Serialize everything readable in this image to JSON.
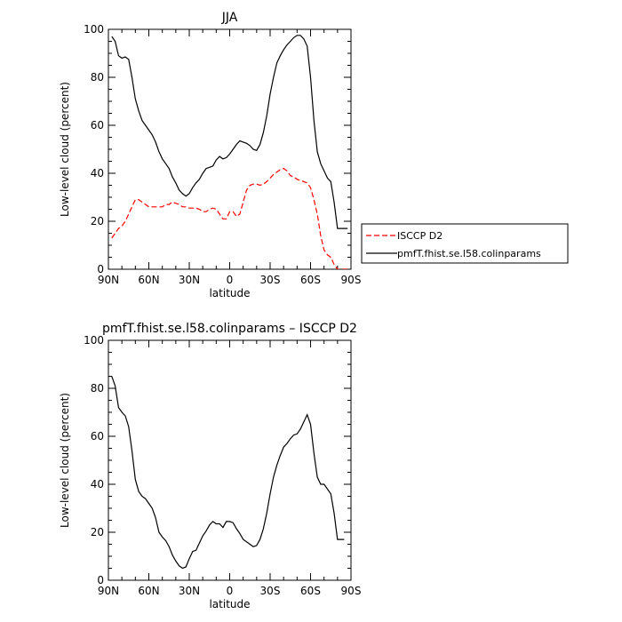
{
  "chart_data": [
    {
      "type": "line",
      "title": "JJA",
      "xlabel": "latitude",
      "ylabel": "Low-level cloud (percent)",
      "xlim": [
        90,
        -90
      ],
      "ylim": [
        0,
        100
      ],
      "x_ticks": [
        90,
        60,
        30,
        0,
        -30,
        -60,
        -90
      ],
      "x_tick_labels": [
        "90N",
        "60N",
        "30N",
        "0",
        "30S",
        "60S",
        "90S"
      ],
      "y_ticks": [
        0,
        20,
        40,
        60,
        80,
        100
      ],
      "y_tick_labels": [
        "0",
        "20",
        "40",
        "60",
        "80",
        "100"
      ],
      "legend_position": "right",
      "series": [
        {
          "name": "ISCCP D2",
          "color": "#ff0000",
          "dash": "dashed",
          "x": [
            87.5,
            85,
            82.5,
            80,
            77.5,
            75,
            72.5,
            70,
            67.5,
            65,
            62.5,
            60,
            57.5,
            55,
            52.5,
            50,
            47.5,
            45,
            42.5,
            40,
            37.5,
            35,
            32.5,
            30,
            27.5,
            25,
            22.5,
            20,
            17.5,
            15,
            12.5,
            10,
            7.5,
            5,
            2.5,
            0,
            -2.5,
            -5,
            -7.5,
            -10,
            -12.5,
            -15,
            -17.5,
            -20,
            -22.5,
            -25,
            -27.5,
            -30,
            -32.5,
            -35,
            -37.5,
            -40,
            -42.5,
            -45,
            -47.5,
            -50,
            -52.5,
            -55,
            -57.5,
            -60,
            -62.5,
            -65,
            -67.5,
            -70,
            -72.5,
            -75,
            -77.5,
            -80,
            -82.5,
            -85,
            -87.5
          ],
          "y": [
            13,
            15,
            17,
            18,
            20,
            23,
            26,
            29,
            29,
            28,
            27,
            26,
            26,
            26,
            26,
            26,
            27,
            27,
            28,
            27.5,
            27,
            26,
            26,
            25.5,
            25.5,
            25.5,
            25,
            24,
            24,
            25,
            25.5,
            25,
            23,
            21,
            21,
            24,
            24,
            22,
            23,
            28,
            33,
            35,
            35.5,
            35.5,
            35,
            35.5,
            36.5,
            38,
            39.5,
            40.5,
            41.5,
            42,
            41,
            39,
            38.5,
            37.5,
            37,
            36.5,
            36,
            34,
            29,
            23,
            14,
            8,
            6,
            5,
            2,
            0,
            0,
            0,
            0
          ]
        },
        {
          "name": "pmfT.fhist.se.l58.colinparams",
          "color": "#000000",
          "dash": "solid",
          "x": [
            87.5,
            85,
            82.5,
            80,
            77.5,
            75,
            72.5,
            70,
            67.5,
            65,
            62.5,
            60,
            57.5,
            55,
            52.5,
            50,
            47.5,
            45,
            42.5,
            40,
            37.5,
            35,
            32.5,
            30,
            27.5,
            25,
            22.5,
            20,
            17.5,
            15,
            12.5,
            10,
            7.5,
            5,
            2.5,
            0,
            -2.5,
            -5,
            -7.5,
            -10,
            -12.5,
            -15,
            -17.5,
            -20,
            -22.5,
            -25,
            -27.5,
            -30,
            -32.5,
            -35,
            -37.5,
            -40,
            -42.5,
            -45,
            -47.5,
            -50,
            -52.5,
            -55,
            -57.5,
            -60,
            -62.5,
            -65,
            -67.5,
            -70,
            -72.5,
            -75,
            -77.5,
            -80,
            -82.5,
            -85,
            -87.5
          ],
          "y": [
            97,
            95,
            89,
            88,
            88.5,
            87.5,
            80,
            71,
            66,
            62,
            60,
            58,
            56,
            53,
            49,
            46,
            44,
            42,
            38.5,
            36,
            33,
            31.5,
            30.5,
            31.5,
            34,
            36,
            37.5,
            40,
            42,
            42.5,
            43,
            45.5,
            47,
            46,
            46.5,
            48,
            50,
            52,
            53.5,
            53,
            52.5,
            51.5,
            50,
            49.5,
            52,
            57,
            64,
            73,
            80,
            86,
            89,
            91.5,
            93.5,
            95,
            96.5,
            97.5,
            97.5,
            96,
            93,
            80,
            62,
            49,
            44,
            41,
            38,
            36.5,
            28,
            17,
            17,
            17,
            17
          ]
        }
      ]
    },
    {
      "type": "line",
      "title": "pmfT.fhist.se.l58.colinparams – ISCCP D2",
      "xlabel": "latitude",
      "ylabel": "Low-level cloud (percent)",
      "xlim": [
        90,
        -90
      ],
      "ylim": [
        0,
        100
      ],
      "x_ticks": [
        90,
        60,
        30,
        0,
        -30,
        -60,
        -90
      ],
      "x_tick_labels": [
        "90N",
        "60N",
        "30N",
        "0",
        "30S",
        "60S",
        "90S"
      ],
      "y_ticks": [
        0,
        20,
        40,
        60,
        80,
        100
      ],
      "y_tick_labels": [
        "0",
        "20",
        "40",
        "60",
        "80",
        "100"
      ],
      "series": [
        {
          "color": "#000000",
          "dash": "solid",
          "x": [
            87.5,
            85,
            82.5,
            80,
            77.5,
            75,
            72.5,
            70,
            67.5,
            65,
            62.5,
            60,
            57.5,
            55,
            52.5,
            50,
            47.5,
            45,
            42.5,
            40,
            37.5,
            35,
            32.5,
            30,
            27.5,
            25,
            22.5,
            20,
            17.5,
            15,
            12.5,
            10,
            7.5,
            5,
            2.5,
            0,
            -2.5,
            -5,
            -7.5,
            -10,
            -12.5,
            -15,
            -17.5,
            -20,
            -22.5,
            -25,
            -27.5,
            -30,
            -32.5,
            -35,
            -37.5,
            -40,
            -42.5,
            -45,
            -47.5,
            -50,
            -52.5,
            -55,
            -57.5,
            -60,
            -62.5,
            -65,
            -67.5,
            -70,
            -72.5,
            -75,
            -77.5,
            -80,
            -82.5,
            -85
          ],
          "y": [
            85,
            81,
            72,
            70,
            68.5,
            64,
            54,
            42,
            37,
            35,
            34,
            32,
            30,
            26,
            20,
            18,
            16.5,
            14,
            10.5,
            8,
            6,
            5,
            5.5,
            9,
            12,
            12.5,
            15.5,
            18.5,
            20.5,
            23,
            24.5,
            23.5,
            23.5,
            22,
            24.5,
            24.5,
            24,
            21.5,
            19.5,
            17,
            16,
            15,
            14,
            14.5,
            17,
            21.5,
            28,
            36,
            43,
            48,
            52,
            55.5,
            57,
            59,
            60.5,
            61,
            63,
            66,
            69,
            65,
            53,
            43,
            40,
            40,
            38,
            36,
            28,
            17,
            17,
            17
          ]
        }
      ]
    }
  ]
}
